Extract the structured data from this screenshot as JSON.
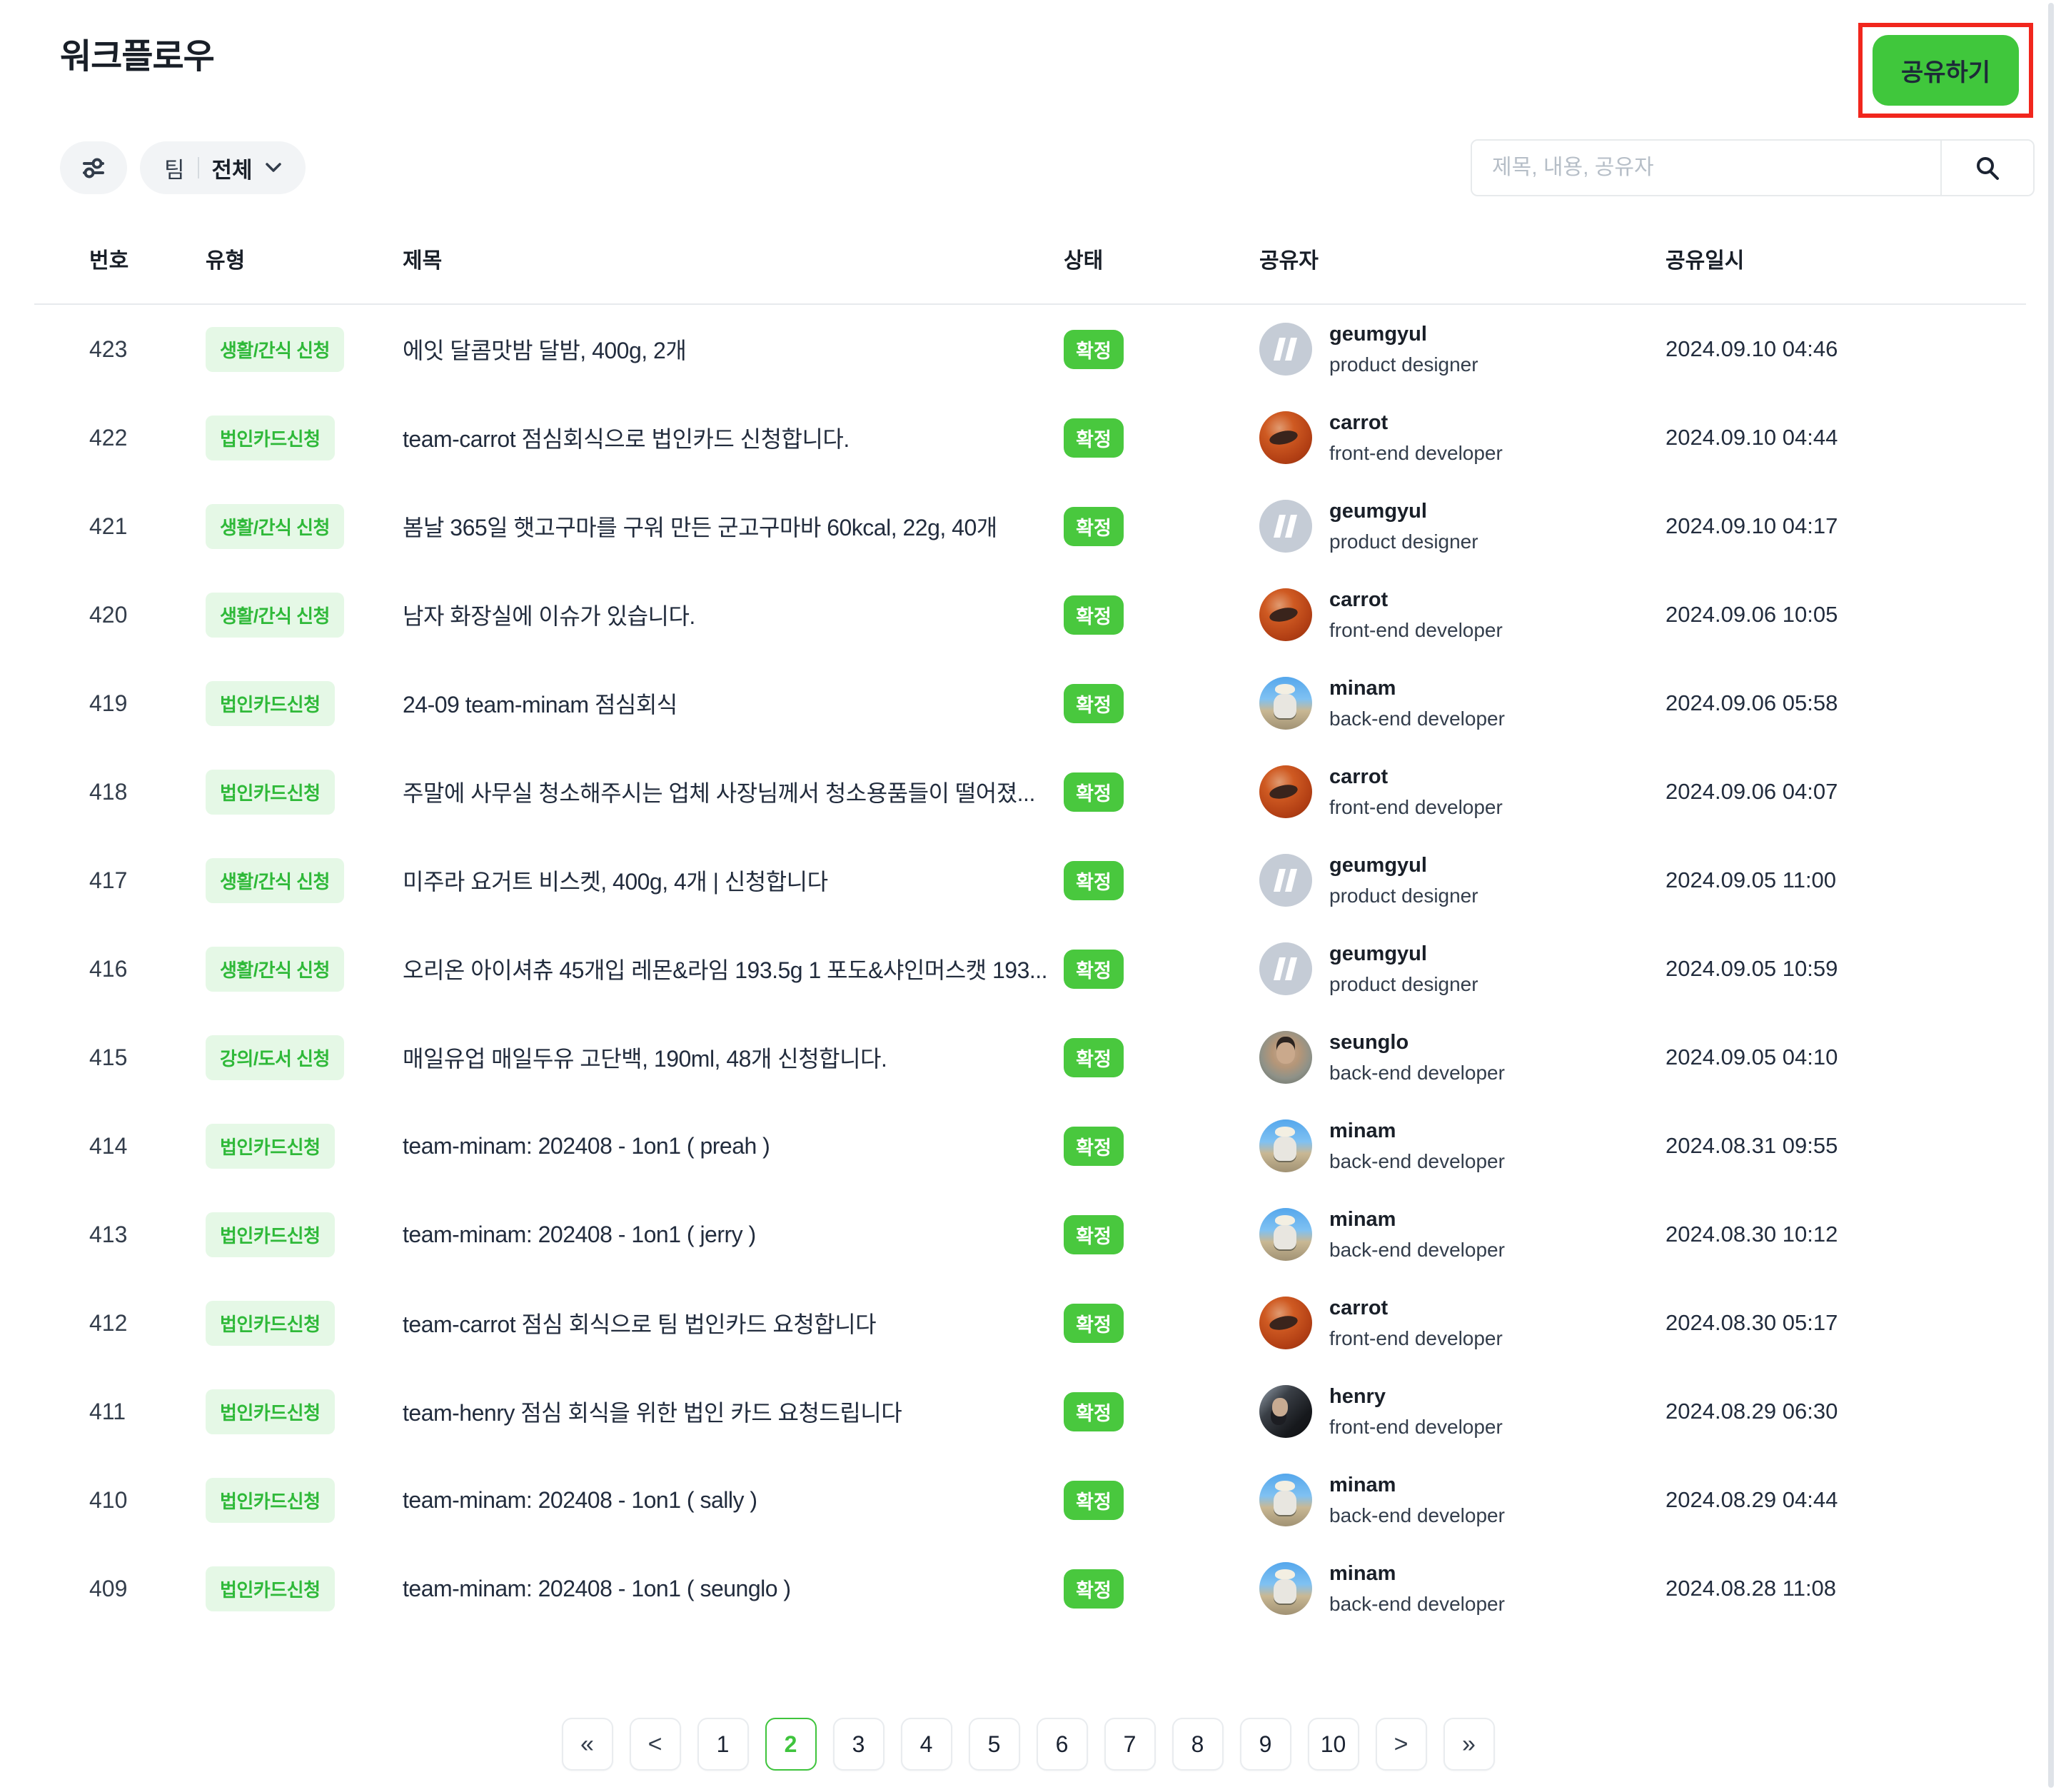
{
  "header": {
    "title": "워크플로우",
    "share_button": "공유하기"
  },
  "filters": {
    "team_label": "팀",
    "team_value": "전체",
    "search_placeholder": "제목, 내용, 공유자"
  },
  "icons": {
    "filter": "sliders-icon",
    "dropdown": "chevron-down-icon",
    "search": "magnifier-icon"
  },
  "table": {
    "headers": {
      "no": "번호",
      "type": "유형",
      "title": "제목",
      "status": "상태",
      "sharer": "공유자",
      "shared_at": "공유일시"
    },
    "rows": [
      {
        "no": "423",
        "type": "생활/간식 신청",
        "title": "에잇 달콤맛밤 달밤, 400g, 2개",
        "status": "확정",
        "sharer": {
          "name": "geumgyul",
          "role": "product designer",
          "avatar": "geumgyul"
        },
        "shared_at": "2024.09.10 04:46"
      },
      {
        "no": "422",
        "type": "법인카드신청",
        "title": "team-carrot 점심회식으로 법인카드 신청합니다.",
        "status": "확정",
        "sharer": {
          "name": "carrot",
          "role": "front-end developer",
          "avatar": "carrot"
        },
        "shared_at": "2024.09.10 04:44"
      },
      {
        "no": "421",
        "type": "생활/간식 신청",
        "title": "봄날 365일 햇고구마를 구워 만든 군고구마바 60kcal, 22g, 40개",
        "status": "확정",
        "sharer": {
          "name": "geumgyul",
          "role": "product designer",
          "avatar": "geumgyul"
        },
        "shared_at": "2024.09.10 04:17"
      },
      {
        "no": "420",
        "type": "생활/간식 신청",
        "title": "남자 화장실에 이슈가 있습니다.",
        "status": "확정",
        "sharer": {
          "name": "carrot",
          "role": "front-end developer",
          "avatar": "carrot"
        },
        "shared_at": "2024.09.06 10:05"
      },
      {
        "no": "419",
        "type": "법인카드신청",
        "title": "24-09 team-minam 점심회식",
        "status": "확정",
        "sharer": {
          "name": "minam",
          "role": "back-end developer",
          "avatar": "minam"
        },
        "shared_at": "2024.09.06 05:58"
      },
      {
        "no": "418",
        "type": "법인카드신청",
        "title": "주말에 사무실 청소해주시는 업체 사장님께서 청소용품들이 떨어졌...",
        "status": "확정",
        "sharer": {
          "name": "carrot",
          "role": "front-end developer",
          "avatar": "carrot"
        },
        "shared_at": "2024.09.06 04:07"
      },
      {
        "no": "417",
        "type": "생활/간식 신청",
        "title": "미주라 요거트 비스켓, 400g, 4개 | 신청합니다",
        "status": "확정",
        "sharer": {
          "name": "geumgyul",
          "role": "product designer",
          "avatar": "geumgyul"
        },
        "shared_at": "2024.09.05 11:00"
      },
      {
        "no": "416",
        "type": "생활/간식 신청",
        "title": "오리온 아이셔츄 45개입 레몬&라임 193.5g 1 포도&샤인머스캣 193...",
        "status": "확정",
        "sharer": {
          "name": "geumgyul",
          "role": "product designer",
          "avatar": "geumgyul"
        },
        "shared_at": "2024.09.05 10:59"
      },
      {
        "no": "415",
        "type": "강의/도서 신청",
        "title": "매일유업 매일두유 고단백, 190ml, 48개 신청합니다.",
        "status": "확정",
        "sharer": {
          "name": "seunglo",
          "role": "back-end developer",
          "avatar": "seunglo"
        },
        "shared_at": "2024.09.05 04:10"
      },
      {
        "no": "414",
        "type": "법인카드신청",
        "title": "team-minam: 202408 - 1on1 ( preah )",
        "status": "확정",
        "sharer": {
          "name": "minam",
          "role": "back-end developer",
          "avatar": "minam"
        },
        "shared_at": "2024.08.31 09:55"
      },
      {
        "no": "413",
        "type": "법인카드신청",
        "title": "team-minam: 202408 - 1on1 ( jerry )",
        "status": "확정",
        "sharer": {
          "name": "minam",
          "role": "back-end developer",
          "avatar": "minam"
        },
        "shared_at": "2024.08.30 10:12"
      },
      {
        "no": "412",
        "type": "법인카드신청",
        "title": "team-carrot 점심 회식으로 팀 법인카드 요청합니다",
        "status": "확정",
        "sharer": {
          "name": "carrot",
          "role": "front-end developer",
          "avatar": "carrot"
        },
        "shared_at": "2024.08.30 05:17"
      },
      {
        "no": "411",
        "type": "법인카드신청",
        "title": "team-henry 점심 회식을 위한 법인 카드 요청드립니다",
        "status": "확정",
        "sharer": {
          "name": "henry",
          "role": "front-end developer",
          "avatar": "henry"
        },
        "shared_at": "2024.08.29 06:30"
      },
      {
        "no": "410",
        "type": "법인카드신청",
        "title": "team-minam: 202408 - 1on1 ( sally )",
        "status": "확정",
        "sharer": {
          "name": "minam",
          "role": "back-end developer",
          "avatar": "minam"
        },
        "shared_at": "2024.08.29 04:44"
      },
      {
        "no": "409",
        "type": "법인카드신청",
        "title": "team-minam: 202408 - 1on1 ( seunglo )",
        "status": "확정",
        "sharer": {
          "name": "minam",
          "role": "back-end developer",
          "avatar": "minam"
        },
        "shared_at": "2024.08.28 11:08"
      }
    ]
  },
  "pagination": {
    "first": "«",
    "prev": "<",
    "next": ">",
    "last": "»",
    "pages": [
      "1",
      "2",
      "3",
      "4",
      "5",
      "6",
      "7",
      "8",
      "9",
      "10"
    ],
    "active_page": "2"
  },
  "colors": {
    "accent_green": "#40c73c",
    "type_badge_bg": "#e5f8e6",
    "type_badge_text": "#2fb939",
    "status_badge_bg": "#49c83e",
    "annotation_red": "#f1261d",
    "text_primary": "#191f28"
  }
}
